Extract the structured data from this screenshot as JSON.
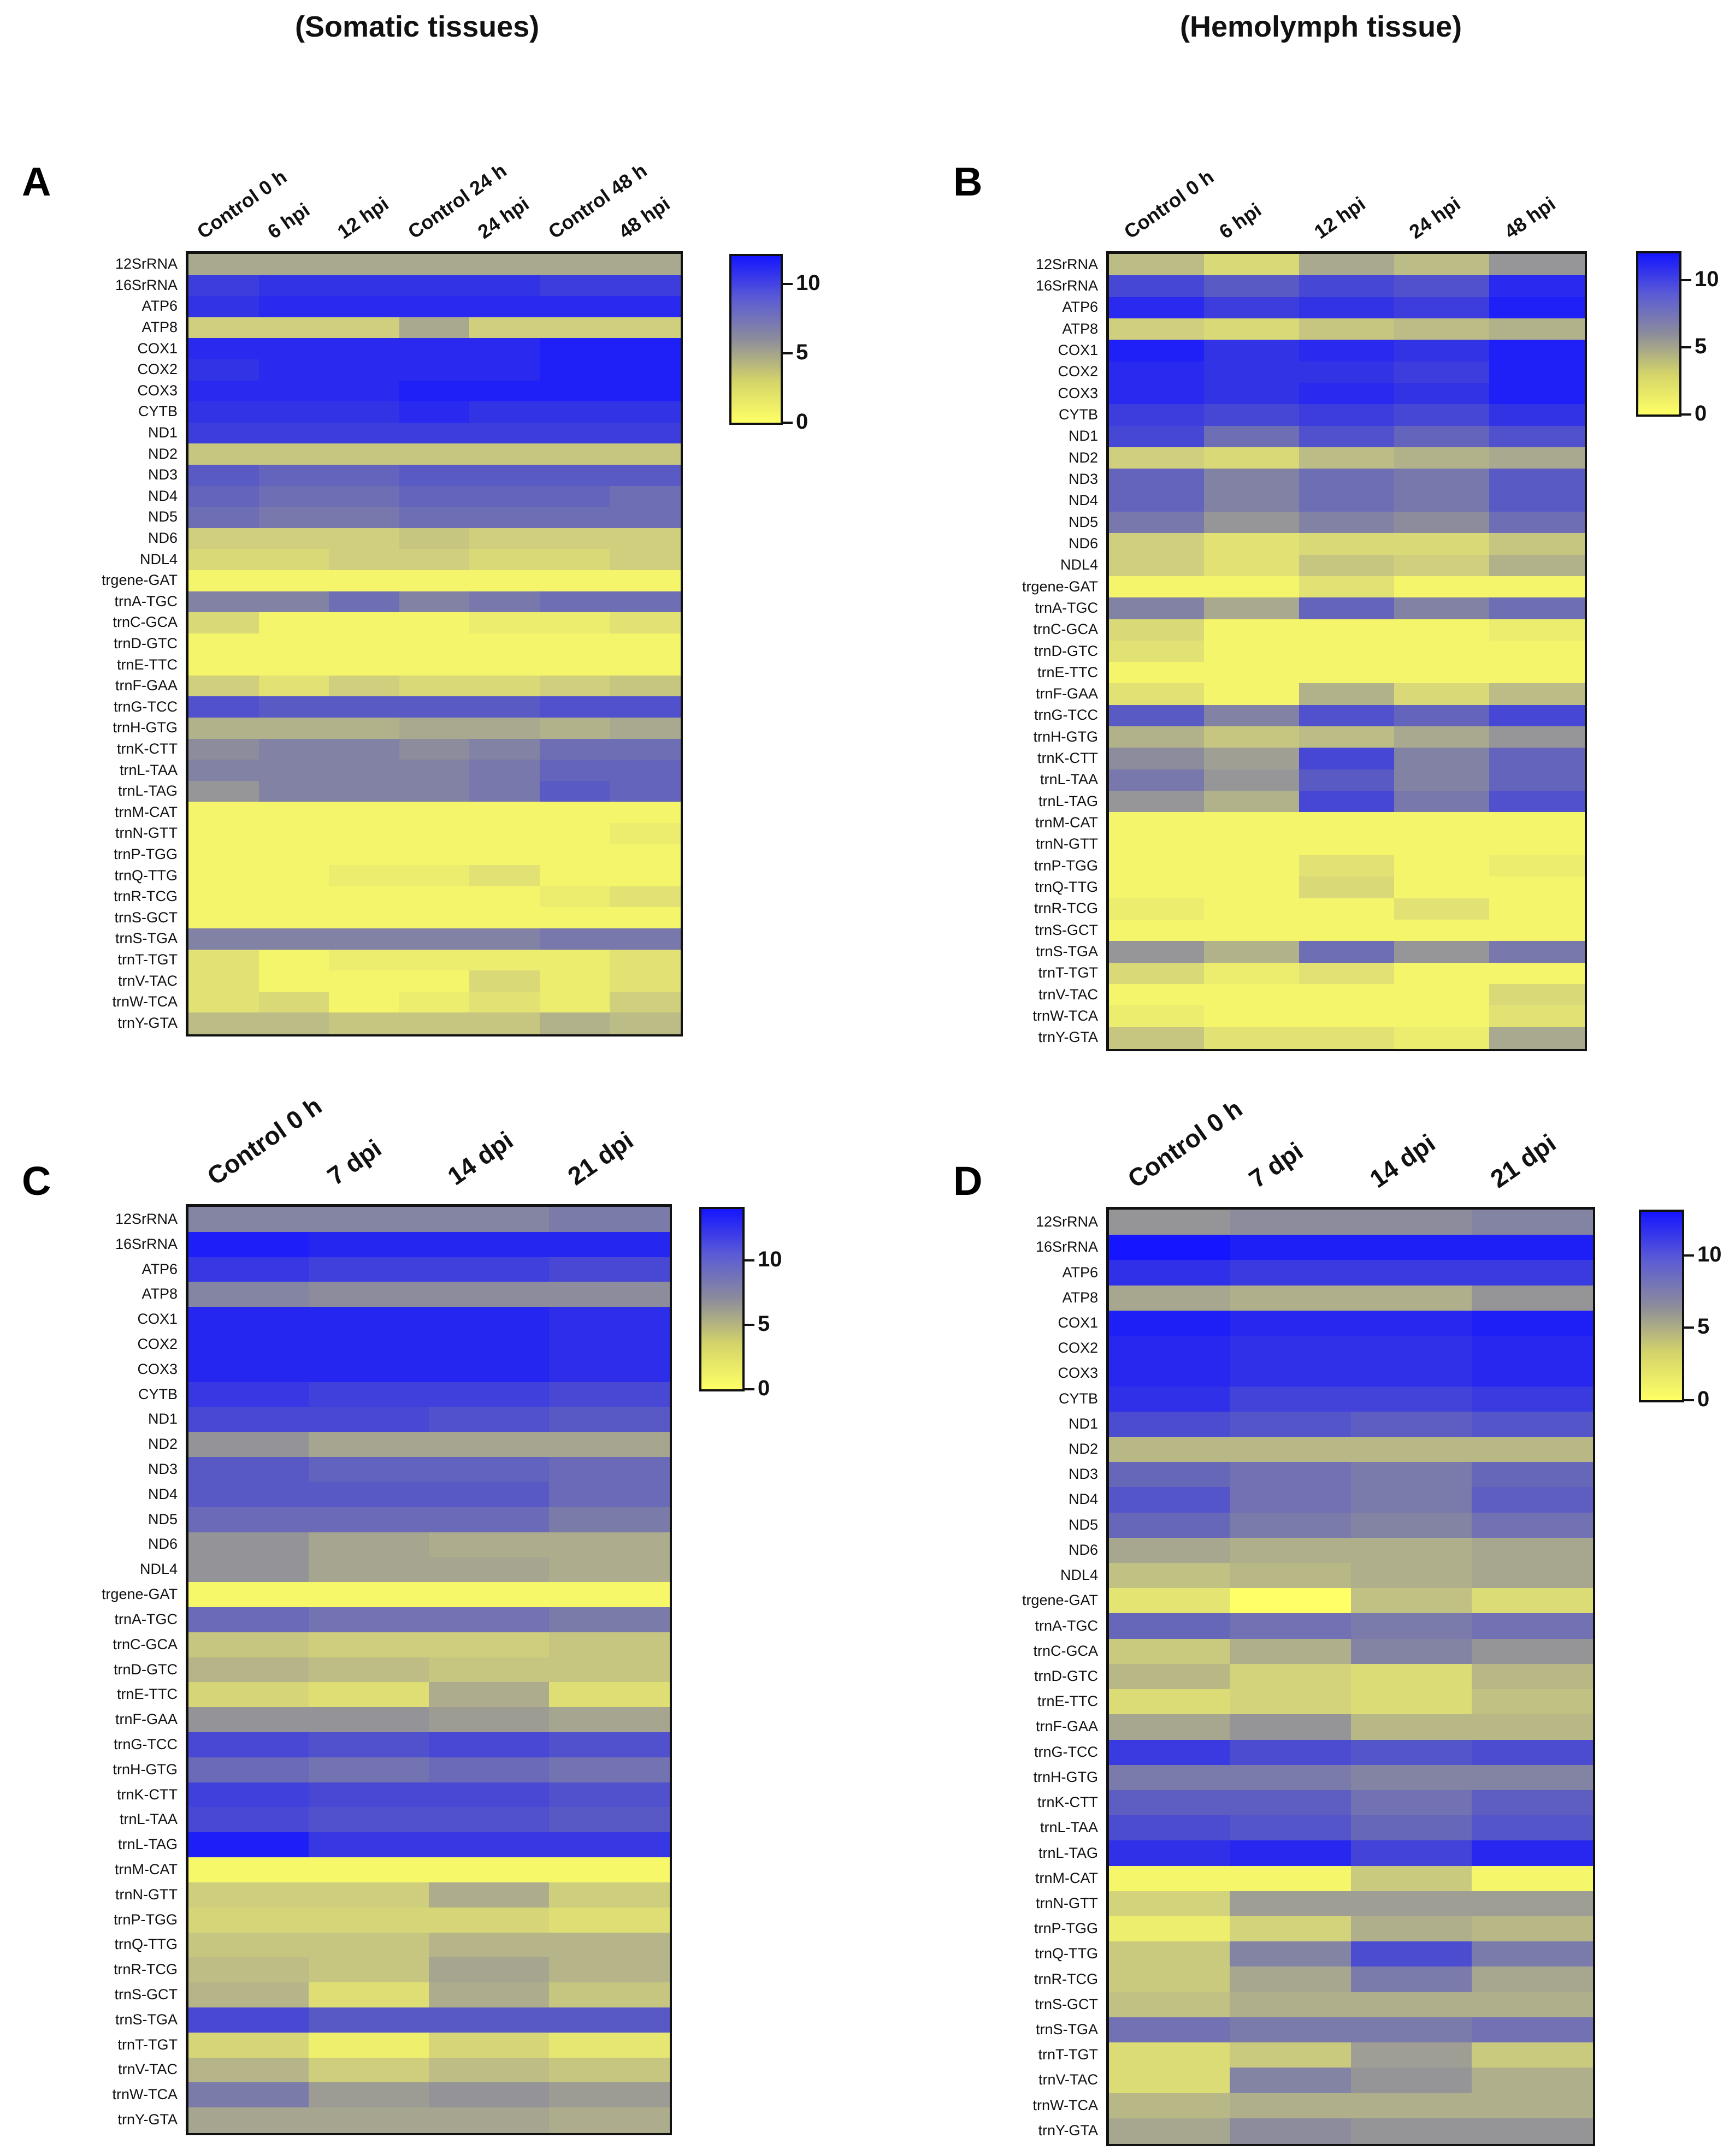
{
  "titles": {
    "left": "(Somatic tissues)",
    "right": "(Hemolymph tissue)"
  },
  "colormap": {
    "low": "#ffff66",
    "mid": "#8c8c9c",
    "high": "#1515ff"
  },
  "chart_data": [
    {
      "type": "heatmap",
      "panel": "A",
      "columns": [
        "Control 0 h",
        "6 hpi",
        "12 hpi",
        "Control 24 h",
        "24 hpi",
        "Control 48 h",
        "48 hpi"
      ],
      "rows": [
        "12SrRNA",
        "16SrRNA",
        "ATP6",
        "ATP8",
        "COX1",
        "COX2",
        "COX3",
        "CYTB",
        "ND1",
        "ND2",
        "ND3",
        "ND4",
        "ND5",
        "ND6",
        "NDL4",
        "trgene-GAT",
        "trnA-TGC",
        "trnC-GCA",
        "trnD-GTC",
        "trnE-TTC",
        "trnF-GAA",
        "trnG-TCC",
        "trnH-GTG",
        "trnK-CTT",
        "trnL-TAA",
        "trnL-TAG",
        "trnM-CAT",
        "trnN-GTT",
        "trnP-TGG",
        "trnQ-TTG",
        "trnR-TCG",
        "trnS-GCT",
        "trnS-TGA",
        "trnT-TGT",
        "trnV-TAC",
        "trnW-TCA",
        "trnY-GTA"
      ],
      "values": [
        [
          4.5,
          4.5,
          4.5,
          4.5,
          4.5,
          4.5,
          4.5
        ],
        [
          10,
          10.5,
          10.5,
          10.5,
          10.5,
          10,
          10
        ],
        [
          10.5,
          11,
          11,
          11,
          11,
          11,
          11
        ],
        [
          2.5,
          2.5,
          2.5,
          4.5,
          2.5,
          2.5,
          2.5
        ],
        [
          11,
          11,
          11,
          11,
          11,
          11.5,
          11.5
        ],
        [
          10.5,
          11,
          11,
          11,
          11,
          11.5,
          11.5
        ],
        [
          11,
          11,
          11,
          11.5,
          11.5,
          11.5,
          11.5
        ],
        [
          10.5,
          10.5,
          10.5,
          11,
          10.5,
          10.5,
          10.5
        ],
        [
          10,
          10,
          10,
          10,
          10,
          10,
          10
        ],
        [
          3,
          3,
          3,
          3,
          3,
          3,
          3
        ],
        [
          8.5,
          8,
          8,
          8.5,
          8.5,
          8.5,
          8.5
        ],
        [
          8,
          7.5,
          7.5,
          8,
          8,
          8,
          7.5
        ],
        [
          7.5,
          7,
          7,
          7.5,
          7.5,
          7.5,
          7.5
        ],
        [
          2.5,
          2.5,
          2.5,
          3,
          2.5,
          2.5,
          2.5
        ],
        [
          2,
          2,
          2.5,
          2.5,
          2,
          2,
          2.5
        ],
        [
          0.5,
          0.5,
          0.5,
          0.5,
          0.5,
          0.5,
          0.5
        ],
        [
          6.5,
          6.5,
          7.5,
          6.5,
          7,
          7.5,
          7.5
        ],
        [
          2,
          0.5,
          0.5,
          0.5,
          1,
          1,
          1.5
        ],
        [
          0.5,
          0.5,
          0.5,
          0.5,
          0.5,
          0.5,
          0.5
        ],
        [
          0.5,
          0.5,
          0.5,
          0.5,
          0.5,
          0.5,
          0.5
        ],
        [
          2.5,
          1.5,
          2.5,
          2,
          2,
          2.5,
          3
        ],
        [
          9,
          8.5,
          8.5,
          8.5,
          8.5,
          9,
          9
        ],
        [
          4,
          4,
          4,
          4.5,
          4.5,
          4,
          4.5
        ],
        [
          6,
          6.5,
          6.5,
          6,
          6.5,
          7.5,
          7.5
        ],
        [
          6.5,
          6.5,
          6.5,
          6.5,
          7,
          8,
          8
        ],
        [
          5.5,
          6.5,
          6.5,
          6.5,
          7,
          8.5,
          8
        ],
        [
          0.5,
          0.5,
          0.5,
          0.5,
          0.5,
          0.5,
          0.5
        ],
        [
          0.5,
          0.5,
          0.5,
          0.5,
          0.5,
          0.5,
          1
        ],
        [
          0.5,
          0.5,
          0.5,
          0.5,
          0.5,
          0.5,
          0.5
        ],
        [
          0.5,
          0.5,
          1,
          1,
          1.5,
          0.5,
          0.5
        ],
        [
          0.5,
          0.5,
          0.5,
          0.5,
          0.5,
          1,
          1.5
        ],
        [
          0.5,
          0.5,
          0.5,
          0.5,
          0.5,
          0.5,
          0.5
        ],
        [
          6.5,
          6.5,
          6.5,
          6.5,
          6.5,
          7,
          7
        ],
        [
          1.5,
          0.5,
          1,
          1,
          1,
          1,
          1.5
        ],
        [
          1.5,
          0.5,
          0.5,
          0.5,
          2,
          1,
          1.5
        ],
        [
          1.5,
          2,
          0.5,
          1,
          1.5,
          1,
          2.5
        ],
        [
          3.5,
          3.5,
          3,
          3,
          3,
          4,
          3.5
        ]
      ],
      "colorbar": {
        "ticks": [
          0,
          5,
          10
        ],
        "max": 12
      }
    },
    {
      "type": "heatmap",
      "panel": "B",
      "columns": [
        "Control 0 h",
        "6 hpi",
        "12 hpi",
        "24 hpi",
        "48 hpi"
      ],
      "rows": [
        "12SrRNA",
        "16SrRNA",
        "ATP6",
        "ATP8",
        "COX1",
        "COX2",
        "COX3",
        "CYTB",
        "ND1",
        "ND2",
        "ND3",
        "ND4",
        "ND5",
        "ND6",
        "NDL4",
        "trgene-GAT",
        "trnA-TGC",
        "trnC-GCA",
        "trnD-GTC",
        "trnE-TTC",
        "trnF-GAA",
        "trnG-TCC",
        "trnH-GTG",
        "trnK-CTT",
        "trnL-TAA",
        "trnL-TAG",
        "trnM-CAT",
        "trnN-GTT",
        "trnP-TGG",
        "trnQ-TTG",
        "trnR-TCG",
        "trnS-GCT",
        "trnS-TGA",
        "trnT-TGT",
        "trnV-TAC",
        "trnW-TCA",
        "trnY-GTA"
      ],
      "values": [
        [
          3.5,
          2,
          4.5,
          3.5,
          5.5
        ],
        [
          9.5,
          8.5,
          9.5,
          9,
          11
        ],
        [
          11,
          10,
          10.5,
          10,
          11.5
        ],
        [
          2.5,
          2,
          3,
          3.5,
          4
        ],
        [
          11.5,
          10.5,
          11,
          10.5,
          11.5
        ],
        [
          11,
          10.5,
          10.5,
          10,
          11.5
        ],
        [
          11,
          10.5,
          11,
          10.5,
          11.5
        ],
        [
          10,
          9.5,
          10,
          9.5,
          10.5
        ],
        [
          9.5,
          7.5,
          9,
          8,
          9
        ],
        [
          2.5,
          2,
          3.5,
          4,
          4.5
        ],
        [
          8,
          6.5,
          7.5,
          7,
          8.5
        ],
        [
          8,
          6.5,
          7.5,
          7,
          8.5
        ],
        [
          7,
          5.5,
          6.5,
          6,
          7.5
        ],
        [
          2.5,
          1.5,
          2,
          2,
          3
        ],
        [
          2.5,
          1.5,
          3,
          2.5,
          4
        ],
        [
          0.5,
          0.5,
          1.5,
          0.5,
          0.5
        ],
        [
          6.5,
          4.5,
          8,
          6.5,
          7.5
        ],
        [
          2,
          0.5,
          0.5,
          0.5,
          1
        ],
        [
          1.5,
          0.5,
          0.5,
          0.5,
          0.5
        ],
        [
          0.5,
          0.5,
          0.5,
          0.5,
          0.5
        ],
        [
          1.5,
          0.5,
          4,
          2,
          3.5
        ],
        [
          8.5,
          6.5,
          9,
          8,
          9.5
        ],
        [
          4,
          3,
          3.5,
          4.5,
          5.5
        ],
        [
          6,
          5,
          9.5,
          6.5,
          8
        ],
        [
          7,
          5.5,
          8.5,
          6.5,
          8
        ],
        [
          5.5,
          4,
          9.5,
          7,
          9
        ],
        [
          0.5,
          0.5,
          0.5,
          0.5,
          0.5
        ],
        [
          0.5,
          0.5,
          0.5,
          0.5,
          0.5
        ],
        [
          0.5,
          0.5,
          1.5,
          0.5,
          1
        ],
        [
          0.5,
          0.5,
          2,
          0.5,
          0.5
        ],
        [
          1,
          0.5,
          0.5,
          1.5,
          0.5
        ],
        [
          0.5,
          0.5,
          0.5,
          0.5,
          0.5
        ],
        [
          5.5,
          4,
          7.5,
          5.5,
          7
        ],
        [
          2,
          1,
          1.5,
          0.5,
          0.5
        ],
        [
          0.5,
          0.5,
          0.5,
          0.5,
          2
        ],
        [
          1,
          0.5,
          0.5,
          0.5,
          1.5
        ],
        [
          3,
          1.5,
          1.5,
          1,
          4.5
        ]
      ],
      "colorbar": {
        "ticks": [
          0,
          5,
          10
        ],
        "max": 12
      }
    },
    {
      "type": "heatmap",
      "panel": "C",
      "columns": [
        "Control 0 h",
        "7 dpi",
        "14 dpi",
        "21 dpi"
      ],
      "rows": [
        "12SrRNA",
        "16SrRNA",
        "ATP6",
        "ATP8",
        "COX1",
        "COX2",
        "COX3",
        "CYTB",
        "ND1",
        "ND2",
        "ND3",
        "ND4",
        "ND5",
        "ND6",
        "NDL4",
        "trgene-GAT",
        "trnA-TGC",
        "trnC-GCA",
        "trnD-GTC",
        "trnE-TTC",
        "trnF-GAA",
        "trnG-TCC",
        "trnH-GTG",
        "trnK-CTT",
        "trnL-TAA",
        "trnL-TAG",
        "trnM-CAT",
        "trnN-GTT",
        "trnP-TGG",
        "trnQ-TTG",
        "trnR-TCG",
        "trnS-GCT",
        "trnS-TGA",
        "trnT-TGT",
        "trnV-TAC",
        "trnW-TCA",
        "trnY-GTA"
      ],
      "values": [
        [
          7.5,
          7.5,
          7.5,
          8
        ],
        [
          13.5,
          13,
          13,
          13
        ],
        [
          12,
          11.5,
          11.5,
          11
        ],
        [
          7.5,
          7,
          7,
          7
        ],
        [
          13,
          13,
          13,
          12.5
        ],
        [
          13,
          13,
          13,
          12.5
        ],
        [
          13,
          13,
          13,
          12.5
        ],
        [
          12,
          11.5,
          11.5,
          11
        ],
        [
          11,
          11,
          10.5,
          10
        ],
        [
          6.5,
          5.5,
          5.5,
          5.5
        ],
        [
          10,
          9.5,
          9.5,
          9
        ],
        [
          10,
          10,
          10,
          9
        ],
        [
          9,
          9,
          9,
          8
        ],
        [
          6.5,
          5.5,
          5,
          5
        ],
        [
          6.5,
          5.5,
          5.5,
          5
        ],
        [
          0.5,
          0.5,
          0.5,
          0.5
        ],
        [
          9,
          8.5,
          8.5,
          8
        ],
        [
          3.5,
          3,
          3,
          3.5
        ],
        [
          4.5,
          4,
          3.5,
          3.5
        ],
        [
          2.5,
          2,
          5,
          2
        ],
        [
          6.5,
          6.5,
          6,
          5.5
        ],
        [
          11,
          10.5,
          11,
          10.5
        ],
        [
          9,
          8.5,
          9,
          8.5
        ],
        [
          11.5,
          11,
          11,
          10.5
        ],
        [
          11,
          10.5,
          10.5,
          10
        ],
        [
          13.5,
          12,
          12,
          12
        ],
        [
          0.5,
          0.5,
          0.5,
          0.5
        ],
        [
          3,
          3,
          5,
          3
        ],
        [
          2.5,
          2.5,
          2.5,
          2
        ],
        [
          3.5,
          3.5,
          4.5,
          4.5
        ],
        [
          4,
          3.5,
          5.5,
          4.5
        ],
        [
          4.5,
          2,
          5,
          3.5
        ],
        [
          11,
          10,
          10,
          10
        ],
        [
          2.5,
          1,
          2.5,
          1.5
        ],
        [
          4.5,
          3,
          4,
          3.5
        ],
        [
          8,
          6,
          6.5,
          6
        ],
        [
          5.5,
          5.5,
          5.5,
          5
        ]
      ],
      "colorbar": {
        "ticks": [
          0,
          5,
          10
        ],
        "max": 14
      }
    },
    {
      "type": "heatmap",
      "panel": "D",
      "columns": [
        "Control 0 h",
        "7 dpi",
        "14 dpi",
        "21 dpi"
      ],
      "rows": [
        "12SrRNA",
        "16SrRNA",
        "ATP6",
        "ATP8",
        "COX1",
        "COX2",
        "COX3",
        "CYTB",
        "ND1",
        "ND2",
        "ND3",
        "ND4",
        "ND5",
        "ND6",
        "NDL4",
        "trgene-GAT",
        "trnA-TGC",
        "trnC-GCA",
        "trnD-GTC",
        "trnE-TTC",
        "trnF-GAA",
        "trnG-TCC",
        "trnH-GTG",
        "trnK-CTT",
        "trnL-TAA",
        "trnL-TAG",
        "trnM-CAT",
        "trnN-GTT",
        "trnP-TGG",
        "trnQ-TTG",
        "trnR-TCG",
        "trnS-GCT",
        "trnS-TGA",
        "trnT-TGT",
        "trnV-TAC",
        "trnW-TCA",
        "trnY-GTA"
      ],
      "values": [
        [
          6,
          6.5,
          6.5,
          7
        ],
        [
          13,
          12.5,
          12.5,
          12.5
        ],
        [
          11.5,
          11,
          11,
          11
        ],
        [
          5,
          4.5,
          4.5,
          6
        ],
        [
          12.5,
          12,
          12,
          12.5
        ],
        [
          12,
          11.5,
          11.5,
          12
        ],
        [
          12,
          11.5,
          11.5,
          12
        ],
        [
          11.5,
          10.5,
          10.5,
          11
        ],
        [
          10,
          9.5,
          9,
          9.5
        ],
        [
          4,
          4,
          4,
          4
        ],
        [
          8.5,
          8,
          7.5,
          8.5
        ],
        [
          9.5,
          8,
          7.5,
          9
        ],
        [
          8.5,
          7.5,
          7,
          8
        ],
        [
          5,
          4.5,
          4.5,
          5
        ],
        [
          3.5,
          4,
          4.5,
          5
        ],
        [
          1.5,
          0,
          3.5,
          2
        ],
        [
          8.5,
          8,
          7.5,
          8
        ],
        [
          3,
          4.5,
          7,
          6
        ],
        [
          4,
          2.5,
          2,
          4
        ],
        [
          2,
          2.5,
          2,
          3.5
        ],
        [
          5,
          6,
          4,
          4
        ],
        [
          11,
          10,
          9.5,
          10
        ],
        [
          7.5,
          7.5,
          7,
          7
        ],
        [
          9,
          9,
          8,
          9
        ],
        [
          10,
          9.5,
          8.5,
          9.5
        ],
        [
          11.5,
          12,
          10.5,
          12
        ],
        [
          0.5,
          0.5,
          3,
          0.5
        ],
        [
          2.5,
          5.5,
          5.5,
          5.5
        ],
        [
          1,
          2.5,
          4.5,
          4
        ],
        [
          3,
          7,
          10,
          7.5
        ],
        [
          3,
          5,
          7.5,
          5
        ],
        [
          3.5,
          4.5,
          4.5,
          4.5
        ],
        [
          8,
          7.5,
          7.5,
          8
        ],
        [
          2,
          3,
          5.5,
          3
        ],
        [
          2,
          7,
          6,
          4.5
        ],
        [
          4,
          4.5,
          4.5,
          4.5
        ],
        [
          5,
          6.5,
          6,
          6
        ]
      ],
      "colorbar": {
        "ticks": [
          0,
          5,
          10
        ],
        "max": 13
      }
    }
  ]
}
